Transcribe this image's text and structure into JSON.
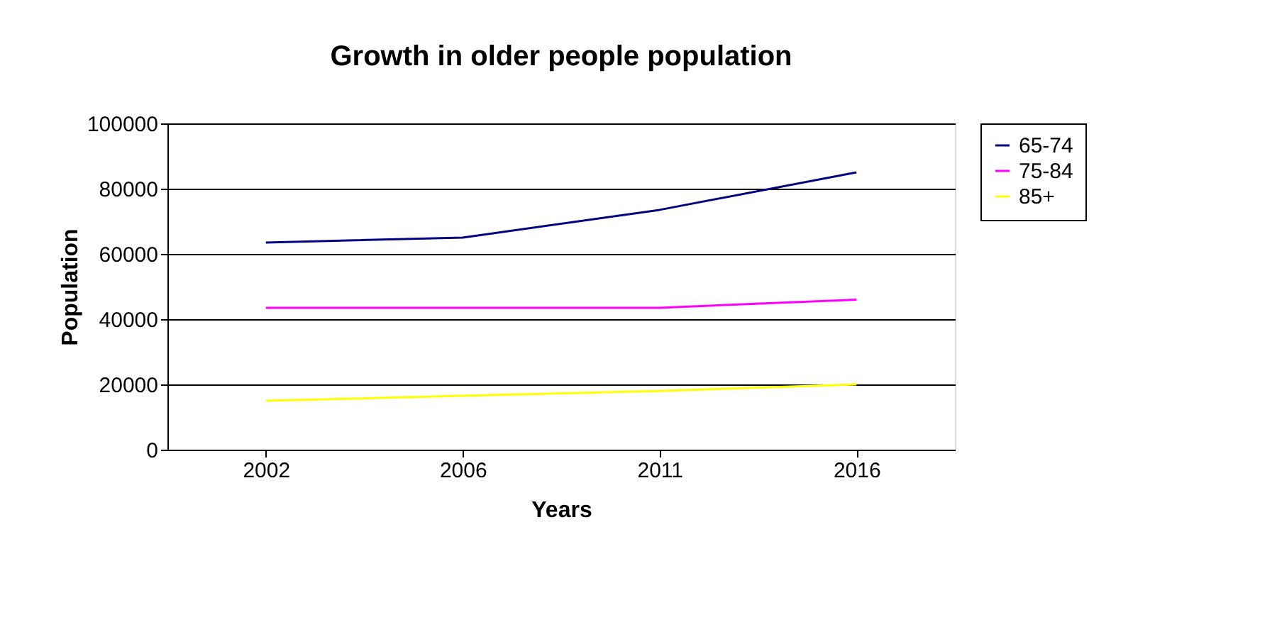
{
  "chart_data": {
    "type": "line",
    "title": "Growth in older people population",
    "xlabel": "Years",
    "ylabel": "Population",
    "categories": [
      "2002",
      "2006",
      "2011",
      "2016"
    ],
    "series": [
      {
        "name": "65-74",
        "color": "#000080",
        "values": [
          63500,
          65000,
          73500,
          85000
        ]
      },
      {
        "name": "75-84",
        "color": "#ff00ff",
        "values": [
          43500,
          43500,
          43500,
          46000
        ]
      },
      {
        "name": "85+",
        "color": "#ffff00",
        "values": [
          15000,
          16500,
          18000,
          20000
        ]
      }
    ],
    "ylim": [
      0,
      100000
    ],
    "yticks": [
      0,
      20000,
      40000,
      60000,
      80000,
      100000
    ],
    "grid": "y",
    "legend": "right",
    "marker": "none",
    "line_style": "solid"
  }
}
